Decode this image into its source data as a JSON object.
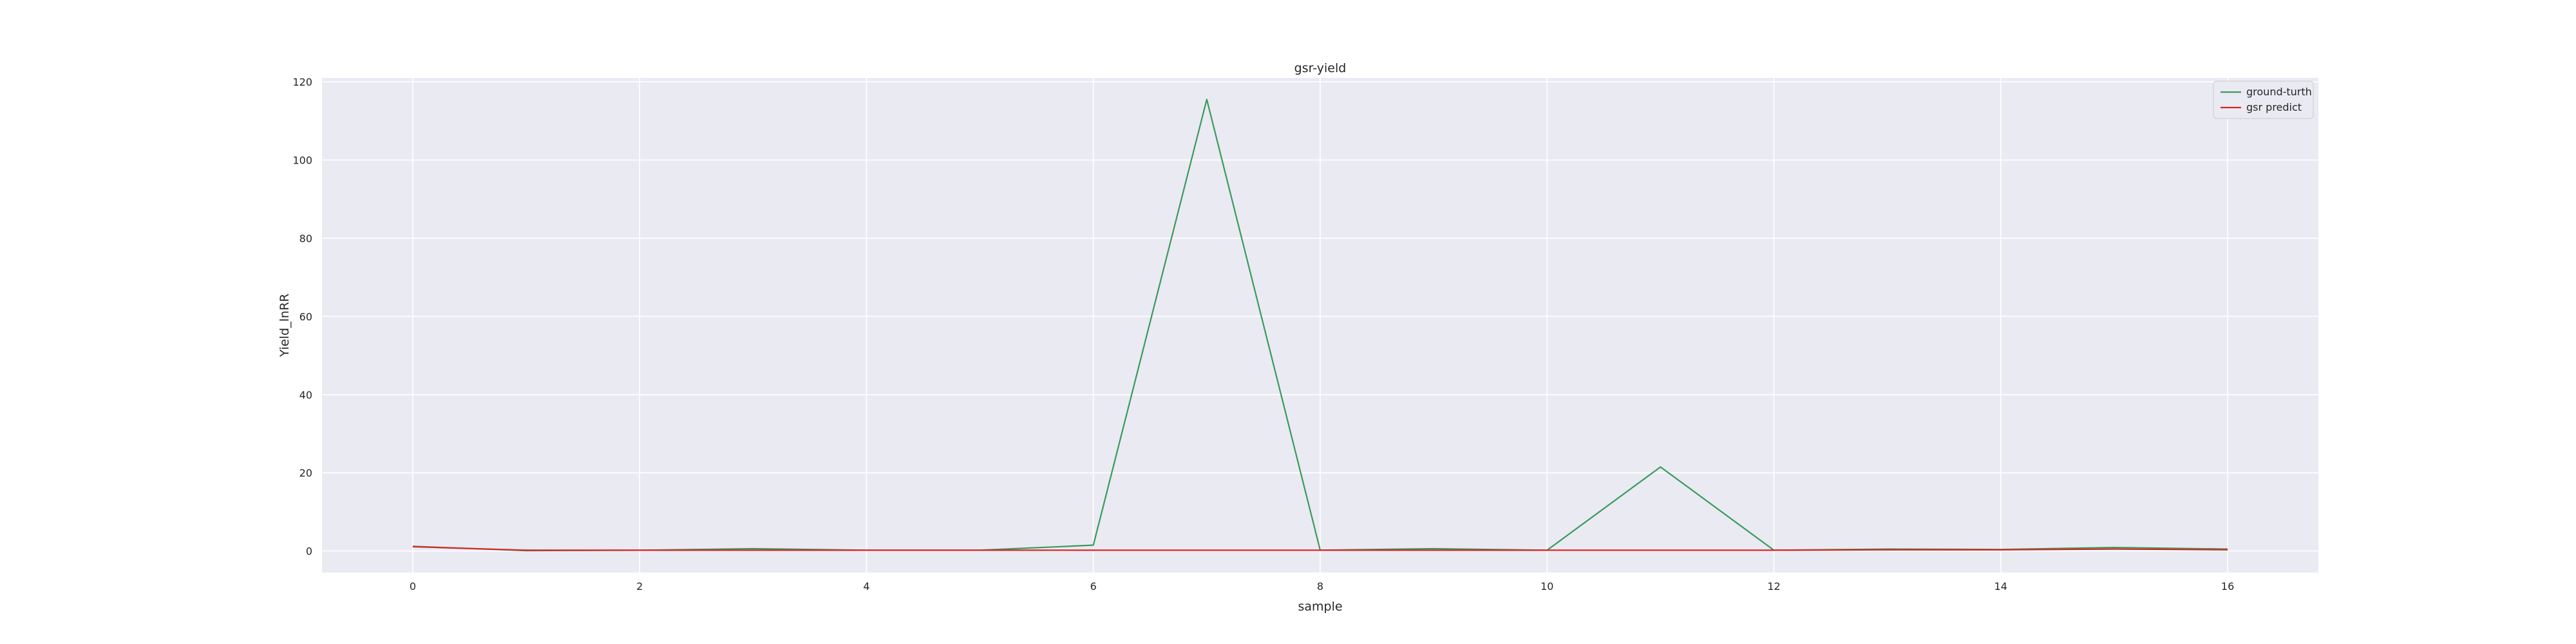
{
  "chart_data": {
    "type": "line",
    "title": "gsr-yield",
    "xlabel": "sample",
    "ylabel": "Yield_lnRR",
    "xlim": [
      -0.8,
      16.8
    ],
    "ylim": [
      -5.5,
      121
    ],
    "xticks": [
      0,
      2,
      4,
      6,
      8,
      10,
      12,
      14,
      16
    ],
    "yticks": [
      0,
      20,
      40,
      60,
      80,
      100,
      120
    ],
    "grid": true,
    "legend_position": "top-right",
    "x": [
      0,
      1,
      2,
      3,
      4,
      5,
      6,
      7,
      8,
      9,
      10,
      11,
      12,
      13,
      14,
      15,
      16
    ],
    "series": [
      {
        "name": "ground-turth",
        "color": "#3a9a5b",
        "values": [
          1.2,
          0.1,
          0.2,
          0.6,
          0.2,
          0.2,
          1.5,
          115.5,
          0.2,
          0.6,
          0.2,
          21.5,
          0.2,
          0.5,
          0.4,
          0.9,
          0.5
        ]
      },
      {
        "name": "gsr predict",
        "color": "#d62728",
        "values": [
          1.1,
          0.2,
          0.2,
          0.2,
          0.2,
          0.2,
          0.2,
          0.2,
          0.2,
          0.2,
          0.2,
          0.2,
          0.2,
          0.3,
          0.3,
          0.5,
          0.3
        ]
      }
    ]
  }
}
